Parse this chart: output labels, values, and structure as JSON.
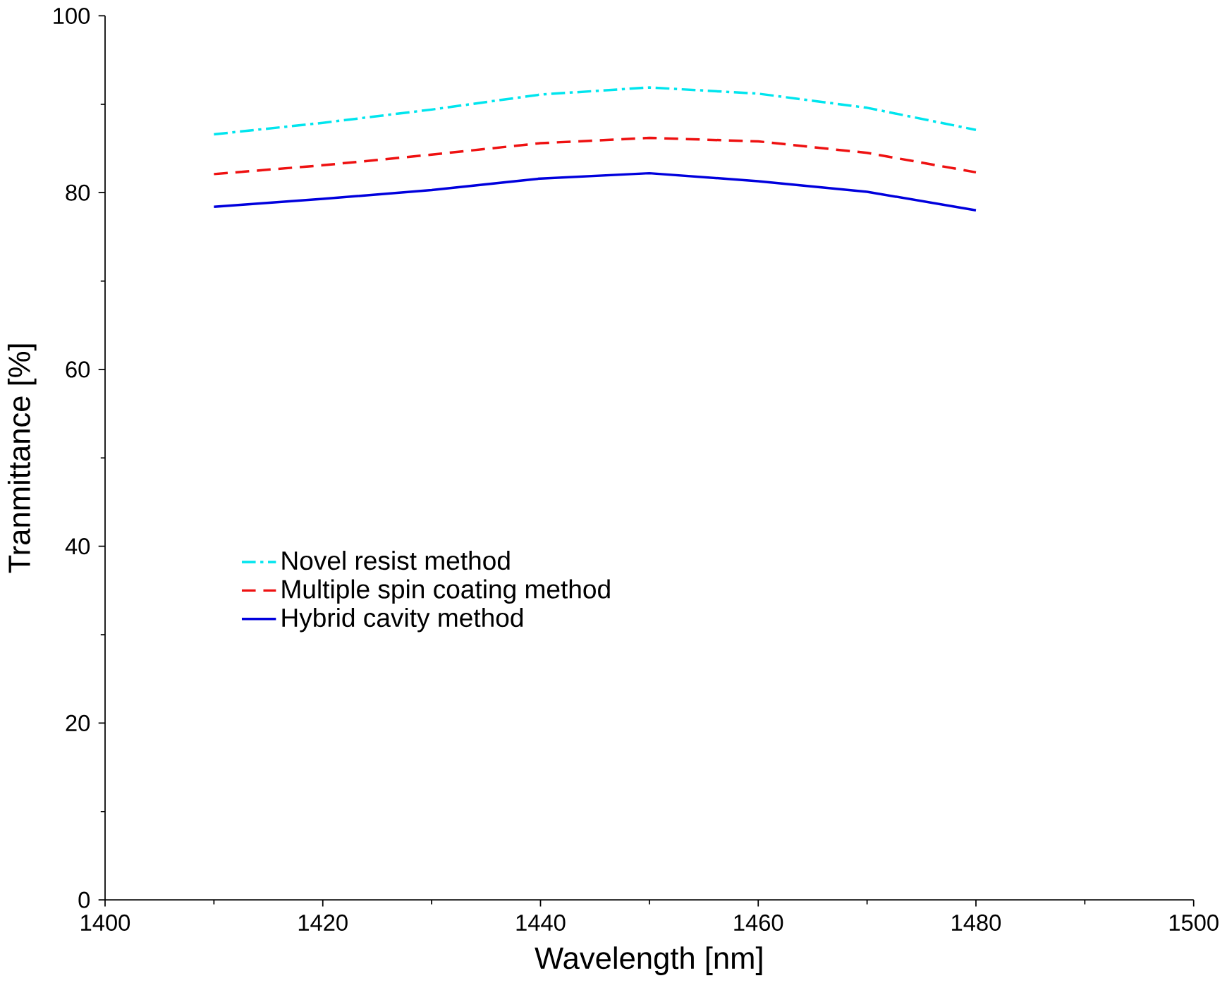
{
  "chart_data": {
    "type": "line",
    "xlabel": "Wavelength [nm]",
    "ylabel": "Tranmittance [%]",
    "x": [
      1410,
      1420,
      1430,
      1440,
      1450,
      1460,
      1470,
      1480
    ],
    "series": [
      {
        "name": "Novel resist method",
        "color": "#00e5ee",
        "line_style": "dashdot",
        "values": [
          86.6,
          87.9,
          89.4,
          91.1,
          91.9,
          91.2,
          89.6,
          87.1
        ]
      },
      {
        "name": "Multiple spin coating method",
        "color": "#ee1111",
        "line_style": "dashed",
        "values": [
          82.1,
          83.1,
          84.3,
          85.6,
          86.2,
          85.8,
          84.5,
          82.3
        ]
      },
      {
        "name": "Hybrid cavity method",
        "color": "#0000dd",
        "line_style": "solid",
        "values": [
          78.4,
          79.3,
          80.3,
          81.6,
          82.2,
          81.3,
          80.1,
          78.0
        ]
      }
    ],
    "xlim": [
      1400,
      1500
    ],
    "xticks": [
      1400,
      1420,
      1440,
      1460,
      1480,
      1500
    ],
    "ylim": [
      0,
      100
    ],
    "yticks": [
      0,
      20,
      40,
      60,
      80,
      100
    ],
    "grid": false,
    "legend": "left",
    "marker": "none"
  }
}
